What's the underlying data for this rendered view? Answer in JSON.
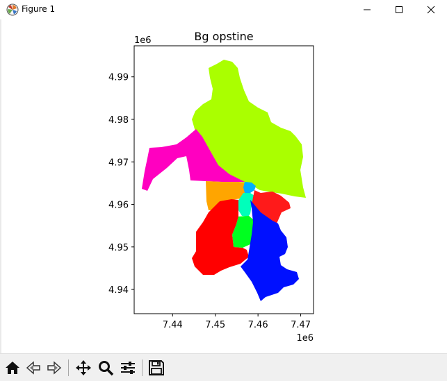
{
  "window": {
    "title": "Figure 1"
  },
  "icons": {
    "app": "matplotlib-icon",
    "minimize": "minimize-icon",
    "maximize": "maximize-icon",
    "close": "close-icon"
  },
  "toolbar": {
    "buttons": [
      {
        "name": "home",
        "icon": "home-icon"
      },
      {
        "name": "back",
        "icon": "back-arrow-icon"
      },
      {
        "name": "forward",
        "icon": "forward-arrow-icon"
      },
      {
        "name": "pan",
        "icon": "move-icon"
      },
      {
        "name": "zoom",
        "icon": "zoom-icon"
      },
      {
        "name": "subplots",
        "icon": "sliders-icon"
      },
      {
        "name": "save",
        "icon": "save-icon"
      }
    ]
  },
  "chart_data": {
    "type": "map",
    "title": "Bg opstine",
    "x_offset_label": "1e6",
    "y_offset_label": "1e6",
    "x_ticks": [
      "7.44",
      "7.45",
      "7.46",
      "7.47"
    ],
    "y_ticks": [
      "4.94",
      "4.95",
      "4.96",
      "4.97",
      "4.98",
      "4.99"
    ],
    "xlim": [
      7.431,
      7.473
    ],
    "ylim": [
      4.9343,
      4.9973
    ],
    "regions": [
      {
        "color": "#aaff00"
      },
      {
        "color": "#ff00c0"
      },
      {
        "color": "#ffa500"
      },
      {
        "color": "#00b0ff"
      },
      {
        "color": "#00ffbb"
      },
      {
        "color": "#00ff20"
      },
      {
        "color": "#ff0000"
      },
      {
        "color": "#ff1a1a"
      },
      {
        "color": "#0010ff"
      }
    ]
  }
}
